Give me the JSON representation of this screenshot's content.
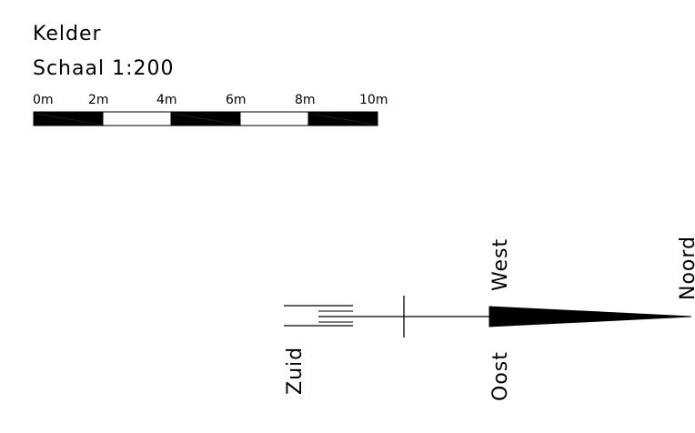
{
  "title": "Kelder",
  "scale_text": "Schaal 1:200",
  "scale_bar": {
    "labels": [
      "0m",
      "2m",
      "4m",
      "6m",
      "8m",
      "10m"
    ],
    "segment_fills": [
      "black",
      "white",
      "black",
      "white",
      "black"
    ]
  },
  "compass": {
    "north": "Noord",
    "south": "Zuid",
    "east": "Oost",
    "west": "West"
  },
  "colors": {
    "ink": "#000000",
    "paper": "#ffffff"
  }
}
